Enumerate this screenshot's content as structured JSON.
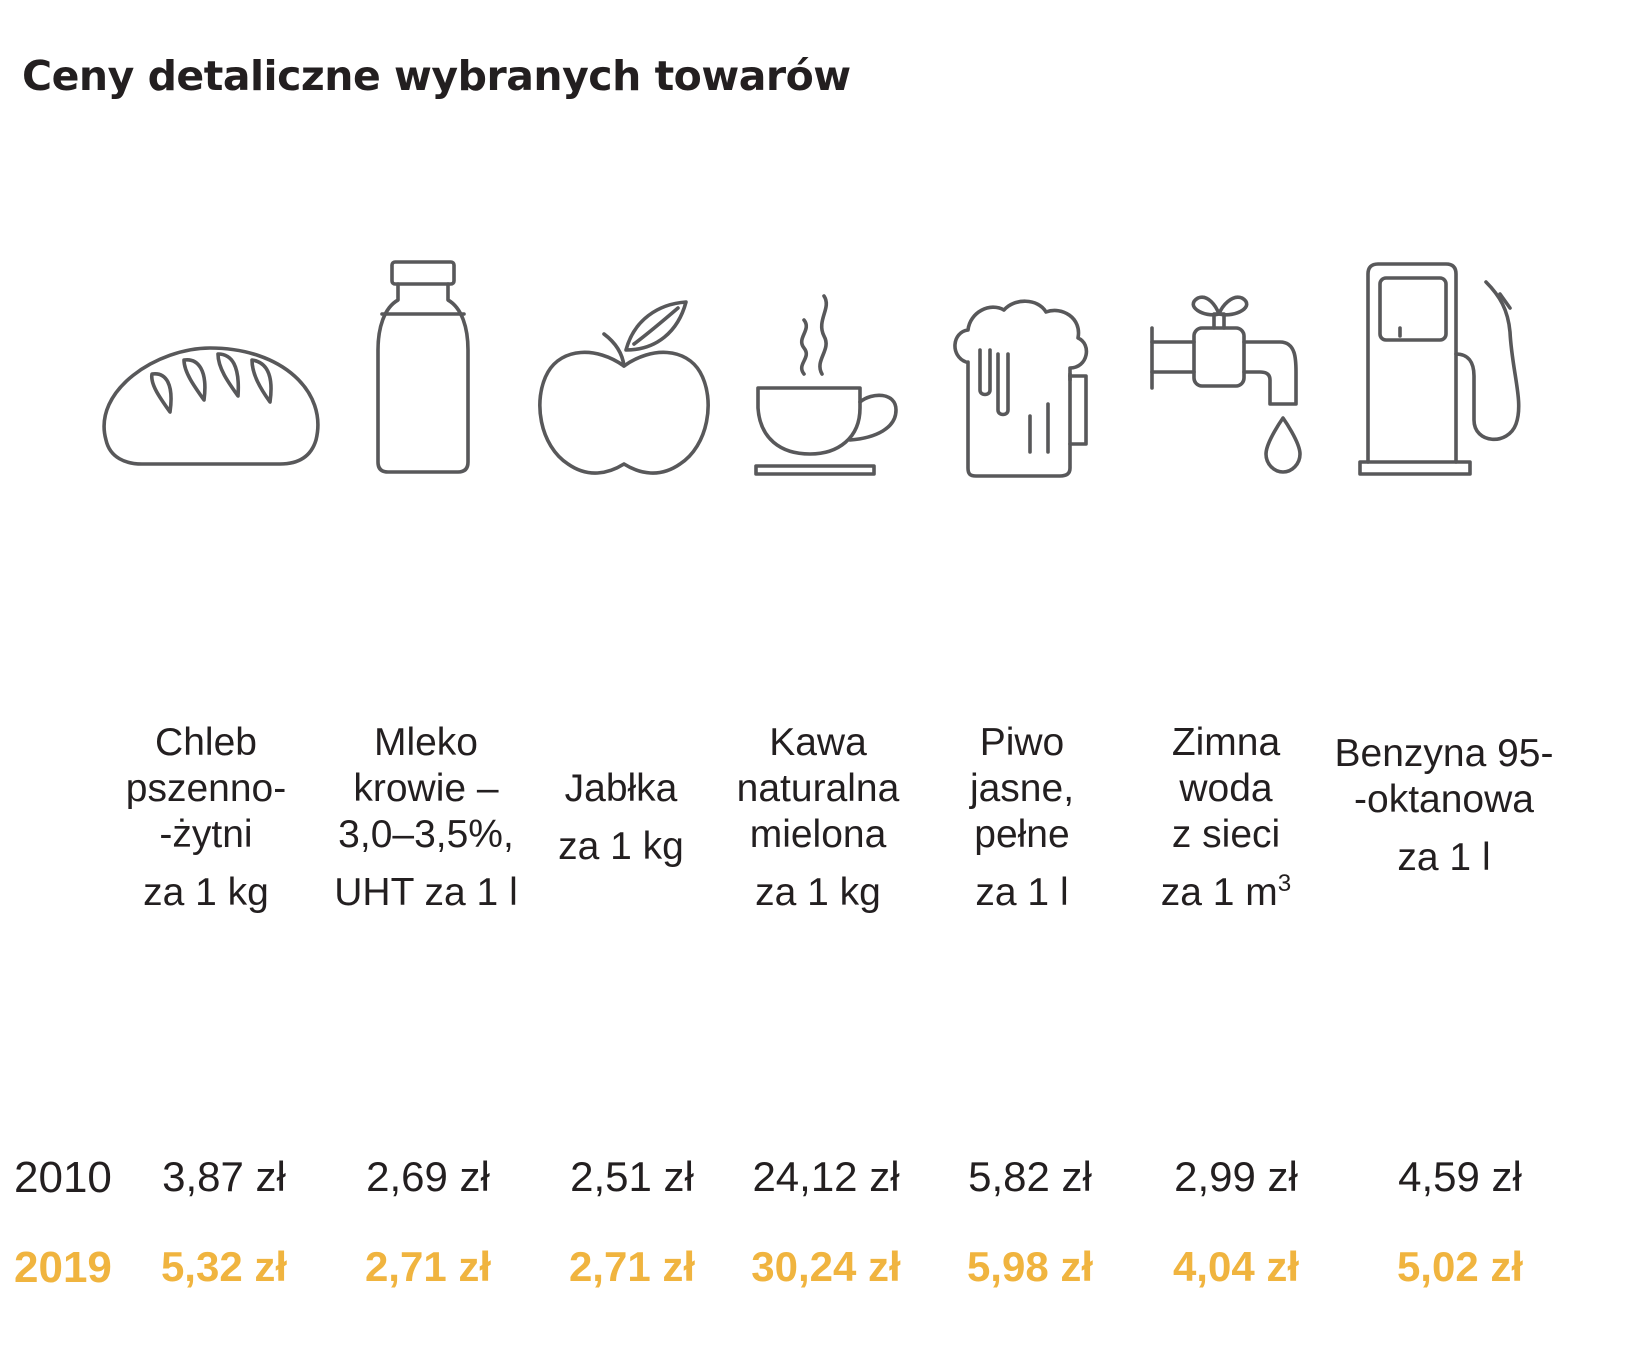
{
  "title": "Ceny detaliczne wybranych towarów",
  "colors": {
    "text": "#231f20",
    "icon_stroke": "#58585a",
    "highlight_2019": "#f0b43f"
  },
  "chart_data": {
    "type": "table",
    "title": "Ceny detaliczne wybranych towarów",
    "columns": [
      {
        "icon": "bread-icon",
        "name": "Chleb\npszenno-\n-żytni",
        "unit": "za 1 kg"
      },
      {
        "icon": "milk-bottle-icon",
        "name": "Mleko\nkrowie –\n3,0–3,5%,",
        "unit": "UHT za 1 l"
      },
      {
        "icon": "apple-icon",
        "name": "Jabłka",
        "unit": "za 1 kg"
      },
      {
        "icon": "coffee-cup-icon",
        "name": "Kawa\nnaturalna\nmielona",
        "unit": "za 1 kg"
      },
      {
        "icon": "beer-mug-icon",
        "name": "Piwo\njasne,\npełne",
        "unit": "za 1 l"
      },
      {
        "icon": "water-tap-icon",
        "name": "Zimna\nwoda\nz sieci",
        "unit": "za 1 m",
        "unit_sup": "3"
      },
      {
        "icon": "fuel-pump-icon",
        "name": "Benzyna 95-\n-oktanowa",
        "unit": "za 1 l"
      }
    ],
    "rows": [
      {
        "year": "2010",
        "values": [
          "3,87 zł",
          "2,69 zł",
          "2,51 zł",
          "24,12 zł",
          "5,82 zł",
          "2,99 zł",
          "4,59 zł"
        ]
      },
      {
        "year": "2019",
        "values": [
          "5,32 zł",
          "2,71 zł",
          "2,71 zł",
          "30,24 zł",
          "5,98 zł",
          "4,04 zł",
          "5,02 zł"
        ]
      }
    ]
  }
}
